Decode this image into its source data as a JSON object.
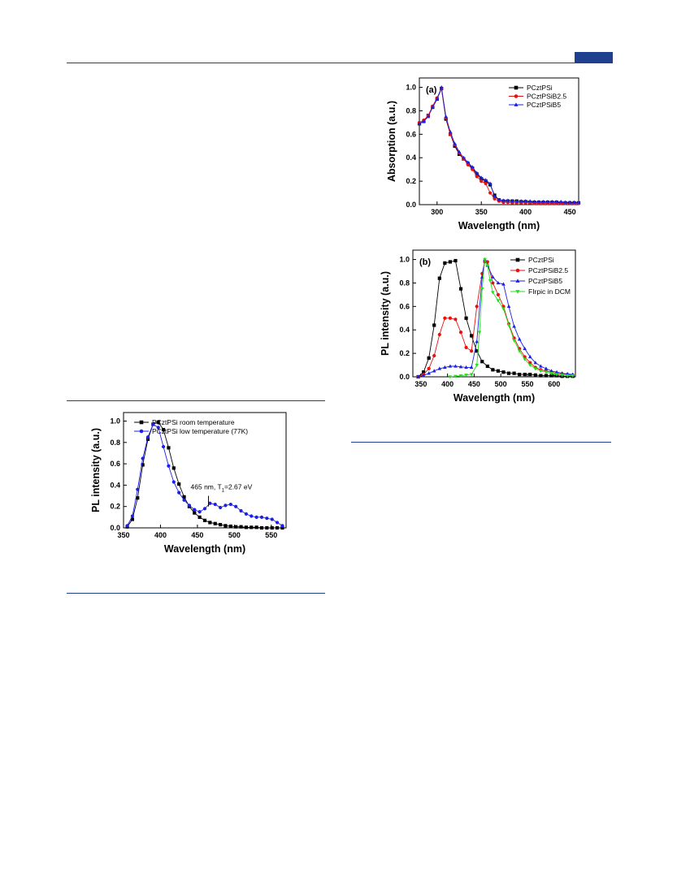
{
  "page": {
    "header_rule_color": "#1f3f8f",
    "header_tab_color": "#1f3f8f"
  },
  "chart_data": [
    {
      "id": "fig-a",
      "type": "line",
      "panel_label": "(a)",
      "xlabel": "Wavelength (nm)",
      "ylabel": "Absorption (a.u.)",
      "xlim": [
        280,
        460
      ],
      "ylim": [
        0,
        1.08
      ],
      "xticks": [
        300,
        350,
        400,
        450
      ],
      "yticks": [
        0.0,
        0.2,
        0.4,
        0.6,
        0.8,
        1.0
      ],
      "legend_position": "top-right",
      "series": [
        {
          "name": "PCztPSi",
          "color": "#000000",
          "marker": "square",
          "x": [
            280,
            285,
            290,
            295,
            300,
            305,
            310,
            315,
            320,
            325,
            330,
            335,
            340,
            345,
            350,
            355,
            360,
            365,
            370,
            375,
            380,
            385,
            390,
            395,
            400,
            405,
            410,
            415,
            420,
            425,
            430,
            435,
            440,
            445,
            450,
            455,
            460
          ],
          "y": [
            0.69,
            0.71,
            0.76,
            0.83,
            0.9,
            0.99,
            0.73,
            0.6,
            0.5,
            0.43,
            0.39,
            0.35,
            0.31,
            0.26,
            0.22,
            0.2,
            0.17,
            0.08,
            0.04,
            0.03,
            0.03,
            0.03,
            0.03,
            0.025,
            0.025,
            0.02,
            0.02,
            0.02,
            0.02,
            0.02,
            0.02,
            0.02,
            0.015,
            0.015,
            0.015,
            0.015,
            0.015
          ]
        },
        {
          "name": "PCztPSiB2.5",
          "color": "#e8110f",
          "marker": "circle",
          "x": [
            280,
            285,
            290,
            295,
            300,
            305,
            310,
            315,
            320,
            325,
            330,
            335,
            340,
            345,
            350,
            355,
            360,
            365,
            370,
            375,
            380,
            385,
            390,
            395,
            400,
            405,
            410,
            415,
            420,
            425,
            430,
            435,
            440,
            445,
            450,
            455,
            460
          ],
          "y": [
            0.7,
            0.72,
            0.76,
            0.84,
            0.91,
            0.99,
            0.74,
            0.6,
            0.51,
            0.44,
            0.39,
            0.34,
            0.3,
            0.24,
            0.2,
            0.18,
            0.1,
            0.05,
            0.03,
            0.02,
            0.02,
            0.015,
            0.015,
            0.015,
            0.015,
            0.015,
            0.01,
            0.01,
            0.01,
            0.01,
            0.01,
            0.01,
            0.01,
            0.01,
            0.01,
            0.01,
            0.01
          ]
        },
        {
          "name": "PCztPSiB5",
          "color": "#1c1fe8",
          "marker": "triangle",
          "x": [
            280,
            285,
            290,
            295,
            300,
            305,
            310,
            315,
            320,
            325,
            330,
            335,
            340,
            345,
            350,
            355,
            360,
            365,
            370,
            375,
            380,
            385,
            390,
            395,
            400,
            405,
            410,
            415,
            420,
            425,
            430,
            435,
            440,
            445,
            450,
            455,
            460
          ],
          "y": [
            0.69,
            0.71,
            0.75,
            0.83,
            0.9,
            1.0,
            0.75,
            0.62,
            0.52,
            0.45,
            0.4,
            0.36,
            0.32,
            0.27,
            0.23,
            0.21,
            0.18,
            0.07,
            0.04,
            0.035,
            0.035,
            0.03,
            0.03,
            0.03,
            0.03,
            0.03,
            0.025,
            0.025,
            0.025,
            0.025,
            0.025,
            0.025,
            0.025,
            0.02,
            0.02,
            0.02,
            0.02
          ]
        }
      ]
    },
    {
      "id": "fig-b",
      "type": "line",
      "panel_label": "(b)",
      "xlabel": "Wavelength (nm)",
      "ylabel": "PL intensity (a.u.)",
      "xlim": [
        335,
        640
      ],
      "ylim": [
        0,
        1.08
      ],
      "xticks": [
        350,
        400,
        450,
        500,
        550,
        600
      ],
      "yticks": [
        0.0,
        0.2,
        0.4,
        0.6,
        0.8,
        1.0
      ],
      "legend_position": "top-right",
      "series": [
        {
          "name": "PCztPSi",
          "color": "#000000",
          "marker": "square",
          "x": [
            345,
            355,
            365,
            375,
            385,
            395,
            405,
            415,
            425,
            435,
            445,
            455,
            465,
            475,
            485,
            495,
            505,
            515,
            525,
            535,
            545,
            555,
            565,
            575,
            585,
            595,
            605,
            615,
            625,
            635
          ],
          "y": [
            0.0,
            0.04,
            0.16,
            0.44,
            0.84,
            0.97,
            0.98,
            0.99,
            0.75,
            0.5,
            0.35,
            0.22,
            0.13,
            0.09,
            0.06,
            0.05,
            0.04,
            0.03,
            0.03,
            0.02,
            0.02,
            0.02,
            0.015,
            0.01,
            0.01,
            0.01,
            0.01,
            0.005,
            0.005,
            0.005
          ]
        },
        {
          "name": "PCztPSiB2.5",
          "color": "#e8110f",
          "marker": "circle",
          "x": [
            345,
            355,
            365,
            375,
            385,
            395,
            405,
            415,
            425,
            435,
            445,
            455,
            465,
            470,
            475,
            485,
            495,
            505,
            515,
            525,
            535,
            545,
            555,
            565,
            575,
            585,
            595,
            605,
            615,
            625,
            635
          ],
          "y": [
            0.0,
            0.02,
            0.07,
            0.18,
            0.36,
            0.5,
            0.5,
            0.49,
            0.38,
            0.25,
            0.22,
            0.6,
            0.88,
            0.98,
            0.98,
            0.8,
            0.7,
            0.6,
            0.45,
            0.33,
            0.24,
            0.17,
            0.12,
            0.08,
            0.06,
            0.05,
            0.04,
            0.03,
            0.025,
            0.02,
            0.015
          ]
        },
        {
          "name": "PCztPSiB5",
          "color": "#1c1fe8",
          "marker": "triangle",
          "x": [
            345,
            355,
            365,
            375,
            385,
            395,
            405,
            415,
            425,
            435,
            445,
            455,
            465,
            470,
            475,
            485,
            495,
            505,
            515,
            525,
            535,
            545,
            555,
            565,
            575,
            585,
            595,
            605,
            615,
            625,
            635
          ],
          "y": [
            0.0,
            0.01,
            0.03,
            0.05,
            0.07,
            0.08,
            0.09,
            0.09,
            0.085,
            0.08,
            0.08,
            0.3,
            0.85,
            1.0,
            0.95,
            0.85,
            0.8,
            0.79,
            0.6,
            0.43,
            0.32,
            0.24,
            0.17,
            0.12,
            0.09,
            0.07,
            0.05,
            0.04,
            0.03,
            0.025,
            0.02
          ]
        },
        {
          "name": "FIrpic in DCM",
          "color": "#22e01c",
          "marker": "triangle-down",
          "x": [
            405,
            415,
            425,
            435,
            445,
            455,
            460,
            465,
            470,
            475,
            480,
            485,
            495,
            505,
            515,
            525,
            535,
            545,
            555,
            565,
            575,
            585,
            595,
            605,
            615,
            625,
            635
          ],
          "y": [
            0.0,
            0.005,
            0.01,
            0.015,
            0.02,
            0.1,
            0.38,
            0.75,
            1.0,
            0.95,
            0.82,
            0.72,
            0.65,
            0.58,
            0.44,
            0.31,
            0.22,
            0.15,
            0.1,
            0.07,
            0.05,
            0.04,
            0.03,
            0.02,
            0.015,
            0.01,
            0.01
          ]
        }
      ]
    },
    {
      "id": "fig-c",
      "type": "line",
      "panel_label": "",
      "xlabel": "Wavelength (nm)",
      "ylabel": "PL intensity (a.u.)",
      "xlim": [
        350,
        570
      ],
      "ylim": [
        0,
        1.08
      ],
      "xticks": [
        350,
        400,
        450,
        500,
        550
      ],
      "yticks": [
        0.0,
        0.2,
        0.4,
        0.6,
        0.8,
        1.0
      ],
      "legend_position": "top-right",
      "annotation": {
        "text_prefix": "465 nm, T",
        "text_subscript": "1",
        "text_suffix": "=2.67 eV",
        "arrow_x": 465
      },
      "series": [
        {
          "name": "PCztPSi room temperature",
          "color": "#000000",
          "marker": "square",
          "x": [
            355,
            362,
            369,
            376,
            383,
            390,
            397,
            404,
            411,
            418,
            425,
            432,
            439,
            446,
            453,
            460,
            467,
            474,
            481,
            488,
            495,
            502,
            509,
            516,
            523,
            530,
            537,
            544,
            551,
            558,
            565
          ],
          "y": [
            0.01,
            0.08,
            0.28,
            0.59,
            0.83,
            0.97,
            0.99,
            0.92,
            0.75,
            0.56,
            0.41,
            0.29,
            0.2,
            0.14,
            0.1,
            0.07,
            0.05,
            0.04,
            0.03,
            0.02,
            0.015,
            0.01,
            0.01,
            0.005,
            0.005,
            0.005,
            0.0,
            0.0,
            0.0,
            0.0,
            0.0
          ]
        },
        {
          "name": "PCztPSi low temperature (77K)",
          "color": "#1c1fe8",
          "marker": "circle",
          "x": [
            355,
            362,
            369,
            376,
            383,
            390,
            397,
            404,
            411,
            418,
            425,
            432,
            439,
            446,
            453,
            460,
            467,
            474,
            481,
            488,
            495,
            502,
            509,
            516,
            523,
            530,
            537,
            544,
            551,
            558,
            565
          ],
          "y": [
            0.02,
            0.11,
            0.36,
            0.65,
            0.85,
            0.97,
            0.94,
            0.76,
            0.58,
            0.43,
            0.33,
            0.26,
            0.21,
            0.17,
            0.15,
            0.18,
            0.23,
            0.22,
            0.19,
            0.21,
            0.22,
            0.2,
            0.16,
            0.13,
            0.11,
            0.1,
            0.1,
            0.09,
            0.08,
            0.05,
            0.02
          ]
        }
      ]
    }
  ]
}
